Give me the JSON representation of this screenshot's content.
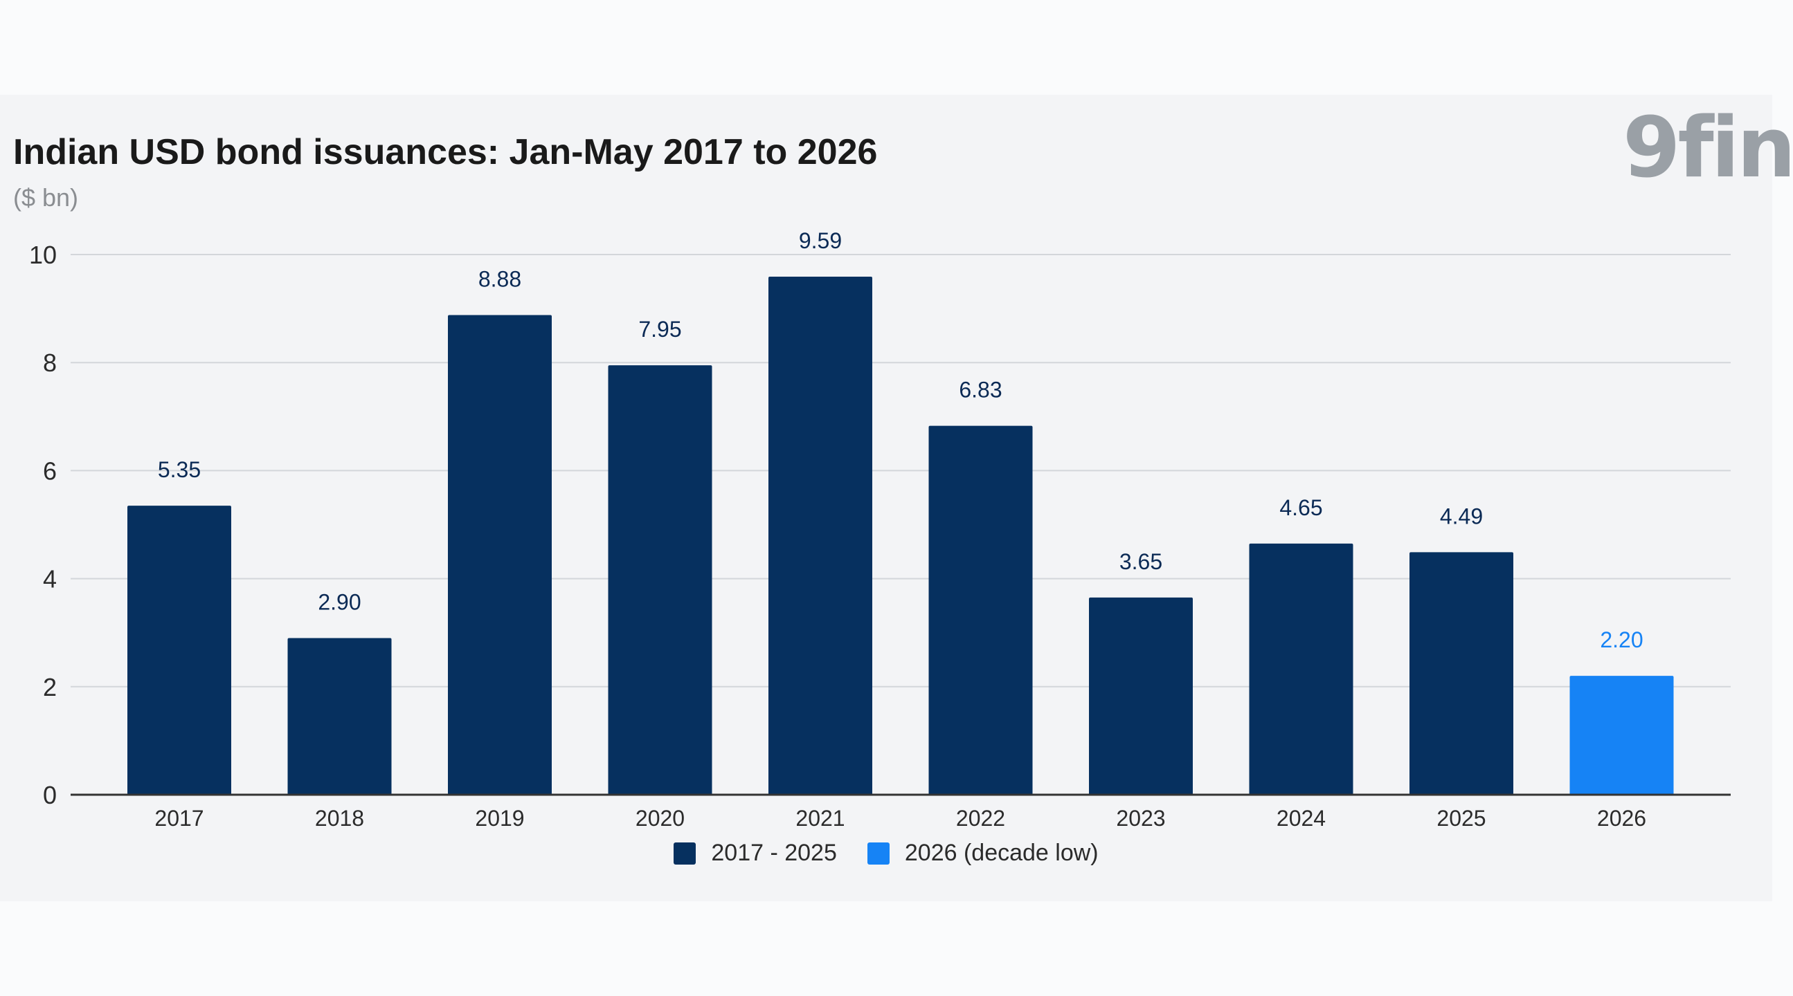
{
  "chart_data": {
    "type": "bar",
    "title": "Indian USD bond issuances: Jan-May 2017 to 2026",
    "subtitle": "($ bn)",
    "categories": [
      "2017",
      "2018",
      "2019",
      "2020",
      "2021",
      "2022",
      "2023",
      "2024",
      "2025",
      "2026"
    ],
    "values": [
      5.35,
      2.9,
      8.88,
      7.95,
      9.59,
      6.83,
      3.65,
      4.65,
      4.49,
      2.2
    ],
    "value_labels": [
      "5.35",
      "2.90",
      "8.88",
      "7.95",
      "9.59",
      "6.83",
      "3.65",
      "4.65",
      "4.49",
      "2.20"
    ],
    "series_index": [
      0,
      0,
      0,
      0,
      0,
      0,
      0,
      0,
      0,
      1
    ],
    "series": [
      {
        "name": "2017 - 2025",
        "color": "#06305f",
        "label_color": "#0b2a55"
      },
      {
        "name": "2026 (decade low)",
        "color": "#1683f5",
        "label_color": "#1683f5"
      }
    ],
    "ylim": [
      0,
      10
    ],
    "yticks": [
      "0",
      "2",
      "4",
      "6",
      "8",
      "10"
    ],
    "grid": true,
    "legend_position": "bottom-center"
  },
  "brand": {
    "logo_text": "9fin"
  }
}
